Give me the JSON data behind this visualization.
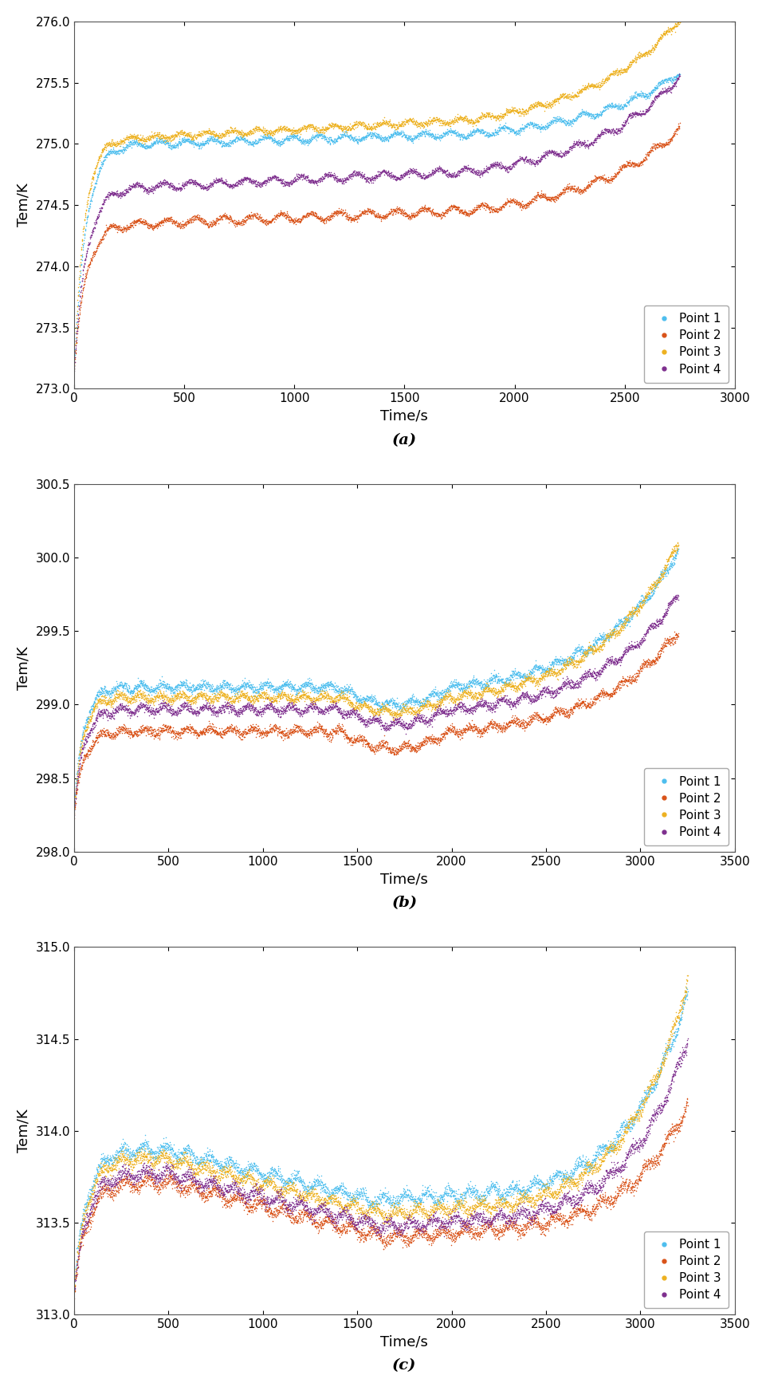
{
  "subplots": [
    {
      "label": "(a)",
      "xlim": [
        0,
        3000
      ],
      "ylim": [
        273,
        276
      ],
      "xticks": [
        0,
        500,
        1000,
        1500,
        2000,
        2500,
        3000
      ],
      "yticks": [
        273,
        273.5,
        274,
        274.5,
        275,
        275.5,
        276
      ],
      "xlabel": "Time/s",
      "ylabel": "Tem/K",
      "series": [
        {
          "name": "Point 1",
          "color": "#4DBEEE",
          "t_end": 2750,
          "start_val": 273.15,
          "plateau_val": 275.0,
          "plateau_time": 320,
          "final_val": 275.45,
          "wave_amp": 0.025,
          "wave_period": 120,
          "noise": 0.012,
          "late_rise_start": 1800,
          "late_rise_extra": 0.45
        },
        {
          "name": "Point 2",
          "color": "#D95319",
          "t_end": 2750,
          "start_val": 273.15,
          "plateau_val": 274.35,
          "plateau_time": 320,
          "final_val": 274.95,
          "wave_amp": 0.03,
          "wave_period": 130,
          "noise": 0.012,
          "late_rise_start": 1800,
          "late_rise_extra": 0.6
        },
        {
          "name": "Point 3",
          "color": "#EDB120",
          "t_end": 2780,
          "start_val": 273.15,
          "plateau_val": 275.05,
          "plateau_time": 280,
          "final_val": 275.85,
          "wave_amp": 0.02,
          "wave_period": 115,
          "noise": 0.012,
          "late_rise_start": 1800,
          "late_rise_extra": 0.8
        },
        {
          "name": "Point 4",
          "color": "#7E2F8E",
          "t_end": 2750,
          "start_val": 273.15,
          "plateau_val": 274.65,
          "plateau_time": 340,
          "final_val": 275.35,
          "wave_amp": 0.028,
          "wave_period": 125,
          "noise": 0.012,
          "late_rise_start": 1800,
          "late_rise_extra": 0.7
        }
      ]
    },
    {
      "label": "(b)",
      "xlim": [
        0,
        3500
      ],
      "ylim": [
        298,
        300.5
      ],
      "xticks": [
        0,
        500,
        1000,
        1500,
        2000,
        2500,
        3000,
        3500
      ],
      "yticks": [
        298,
        298.5,
        299,
        299.5,
        300,
        300.5
      ],
      "xlabel": "Time/s",
      "ylabel": "Tem/K",
      "series": [
        {
          "name": "Point 1",
          "color": "#4DBEEE",
          "t_end": 3200,
          "start_val": 298.3,
          "plateau_val": 299.12,
          "plateau_time": 350,
          "dip_start": 1400,
          "dip_end": 2000,
          "dip_depth": 0.12,
          "final_val": 300.05,
          "wave_amp": 0.022,
          "wave_period": 110,
          "noise": 0.015,
          "late_rise_start": 2000,
          "late_rise_extra": 0.93
        },
        {
          "name": "Point 2",
          "color": "#D95319",
          "t_end": 3200,
          "start_val": 298.25,
          "plateau_val": 298.82,
          "plateau_time": 350,
          "dip_start": 1400,
          "dip_end": 2000,
          "dip_depth": 0.12,
          "final_val": 299.5,
          "wave_amp": 0.022,
          "wave_period": 115,
          "noise": 0.015,
          "late_rise_start": 2000,
          "late_rise_extra": 0.68
        },
        {
          "name": "Point 3",
          "color": "#EDB120",
          "t_end": 3200,
          "start_val": 298.28,
          "plateau_val": 299.05,
          "plateau_time": 330,
          "dip_start": 1400,
          "dip_end": 2000,
          "dip_depth": 0.1,
          "final_val": 300.1,
          "wave_amp": 0.02,
          "wave_period": 108,
          "noise": 0.015,
          "late_rise_start": 2000,
          "late_rise_extra": 1.05
        },
        {
          "name": "Point 4",
          "color": "#7E2F8E",
          "t_end": 3200,
          "start_val": 298.27,
          "plateau_val": 298.97,
          "plateau_time": 360,
          "dip_start": 1400,
          "dip_end": 2000,
          "dip_depth": 0.1,
          "final_val": 299.75,
          "wave_amp": 0.022,
          "wave_period": 112,
          "noise": 0.015,
          "late_rise_start": 2000,
          "late_rise_extra": 0.78
        }
      ]
    },
    {
      "label": "(c)",
      "xlim": [
        0,
        3500
      ],
      "ylim": [
        313,
        315
      ],
      "xticks": [
        0,
        500,
        1000,
        1500,
        2000,
        2500,
        3000,
        3500
      ],
      "yticks": [
        313,
        313.5,
        314,
        314.5,
        315
      ],
      "xlabel": "Time/s",
      "ylabel": "Tem/K",
      "series": [
        {
          "name": "Point 1",
          "color": "#4DBEEE",
          "t_end": 3250,
          "start_val": 313.15,
          "peak1_val": 313.9,
          "peak1_time": 480,
          "valley_val": 313.62,
          "valley_time": 1600,
          "final_val": 314.75,
          "wave_amp": 0.025,
          "wave_period": 115,
          "noise": 0.018,
          "late_rise_start": 2300,
          "late_rise_extra": 1.13
        },
        {
          "name": "Point 2",
          "color": "#D95319",
          "t_end": 3250,
          "start_val": 313.12,
          "peak1_val": 313.72,
          "peak1_time": 490,
          "valley_val": 313.42,
          "valley_time": 1650,
          "final_val": 314.15,
          "wave_amp": 0.025,
          "wave_period": 120,
          "noise": 0.018,
          "late_rise_start": 2300,
          "late_rise_extra": 0.73
        },
        {
          "name": "Point 3",
          "color": "#EDB120",
          "t_end": 3250,
          "start_val": 313.13,
          "peak1_val": 313.85,
          "peak1_time": 470,
          "valley_val": 313.55,
          "valley_time": 1620,
          "final_val": 314.82,
          "wave_amp": 0.022,
          "wave_period": 112,
          "noise": 0.018,
          "late_rise_start": 2300,
          "late_rise_extra": 1.27
        },
        {
          "name": "Point 4",
          "color": "#7E2F8E",
          "t_end": 3250,
          "start_val": 313.12,
          "peak1_val": 313.77,
          "peak1_time": 485,
          "valley_val": 313.48,
          "valley_time": 1640,
          "final_val": 314.5,
          "wave_amp": 0.024,
          "wave_period": 117,
          "noise": 0.018,
          "late_rise_start": 2300,
          "late_rise_extra": 0.95
        }
      ]
    }
  ],
  "legend_labels": [
    "Point 1",
    "Point 2",
    "Point 3",
    "Point 4"
  ],
  "legend_colors": [
    "#4DBEEE",
    "#D95319",
    "#EDB120",
    "#7E2F8E"
  ],
  "marker_size": 1.2,
  "background_color": "#ffffff"
}
